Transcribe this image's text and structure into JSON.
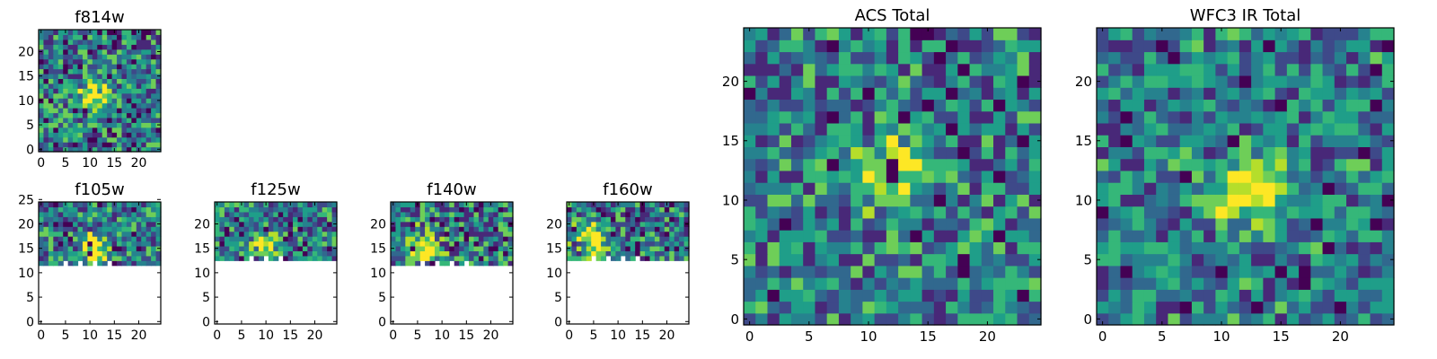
{
  "colors": {
    "background": "#ffffff",
    "axes": "#000000",
    "colormap": [
      "#440154",
      "#482878",
      "#3e4989",
      "#31688e",
      "#26828e",
      "#1f9e89",
      "#35b779",
      "#6ece58",
      "#b5de2b",
      "#fde725"
    ]
  },
  "chart_data": [
    {
      "type": "heatmap",
      "title": "f814w",
      "colormap": "viridis",
      "xlim": [
        0,
        24
      ],
      "ylim": [
        0,
        24
      ],
      "xticks": [
        "0",
        "5",
        "10",
        "15",
        "20"
      ],
      "yticks": [
        "0",
        "5",
        "10",
        "15",
        "20"
      ],
      "coverage_rows": [
        0,
        24
      ],
      "peak": [
        11,
        11
      ],
      "peak_strength": 0.55,
      "noise": 0.75,
      "seed": 11
    },
    {
      "type": "heatmap",
      "title": "f105w",
      "colormap": "viridis",
      "xlim": [
        0,
        24
      ],
      "ylim": [
        0,
        24
      ],
      "xticks": [
        "0",
        "5",
        "10",
        "15",
        "20"
      ],
      "yticks": [
        "0",
        "5",
        "10",
        "15",
        "20",
        "25"
      ],
      "coverage_rows": [
        12,
        24
      ],
      "peak": [
        11,
        15
      ],
      "peak_strength": 0.6,
      "noise": 0.7,
      "seed": 21
    },
    {
      "type": "heatmap",
      "title": "f125w",
      "colormap": "viridis",
      "xlim": [
        0,
        24
      ],
      "ylim": [
        0,
        24
      ],
      "xticks": [
        "0",
        "5",
        "10",
        "15",
        "20"
      ],
      "yticks": [
        "0",
        "5",
        "10",
        "15",
        "20"
      ],
      "coverage_rows": [
        13,
        24
      ],
      "peak": [
        10,
        16
      ],
      "peak_strength": 0.45,
      "noise": 0.7,
      "seed": 31
    },
    {
      "type": "heatmap",
      "title": "f140w",
      "colormap": "viridis",
      "xlim": [
        0,
        24
      ],
      "ylim": [
        0,
        24
      ],
      "xticks": [
        "0",
        "5",
        "10",
        "15",
        "20"
      ],
      "yticks": [
        "0",
        "5",
        "10",
        "15",
        "20"
      ],
      "coverage_rows": [
        12,
        24
      ],
      "peak": [
        6,
        15
      ],
      "peak_strength": 0.55,
      "noise": 0.75,
      "seed": 41
    },
    {
      "type": "heatmap",
      "title": "f160w",
      "colormap": "viridis",
      "xlim": [
        0,
        24
      ],
      "ylim": [
        0,
        24
      ],
      "xticks": [
        "0",
        "5",
        "10",
        "15",
        "20"
      ],
      "yticks": [
        "0",
        "5",
        "10",
        "15",
        "20"
      ],
      "coverage_rows": [
        13,
        24
      ],
      "peak": [
        5,
        17
      ],
      "peak_strength": 0.6,
      "noise": 0.75,
      "seed": 51
    },
    {
      "type": "heatmap",
      "title": "ACS Total",
      "colormap": "viridis",
      "xlim": [
        0,
        24
      ],
      "ylim": [
        0,
        24
      ],
      "xticks": [
        "0",
        "5",
        "10",
        "15",
        "20"
      ],
      "yticks": [
        "0",
        "5",
        "10",
        "15",
        "20"
      ],
      "coverage_rows": [
        0,
        24
      ],
      "peak": [
        12,
        12
      ],
      "peak_strength": 0.6,
      "noise": 0.65,
      "seed": 61
    },
    {
      "type": "heatmap",
      "title": "WFC3 IR Total",
      "colormap": "viridis",
      "xlim": [
        0,
        24
      ],
      "ylim": [
        0,
        24
      ],
      "xticks": [
        "0",
        "5",
        "10",
        "15",
        "20"
      ],
      "yticks": [
        "0",
        "5",
        "10",
        "15",
        "20"
      ],
      "coverage_rows": [
        0,
        24
      ],
      "peak": [
        12,
        11
      ],
      "peak_strength": 0.55,
      "noise": 0.6,
      "seed": 71
    }
  ]
}
